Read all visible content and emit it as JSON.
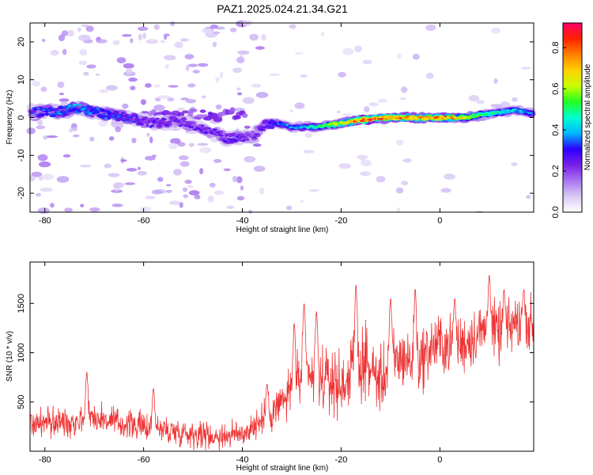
{
  "title": "PAZ1.2025.024.21.34.G21",
  "chart_data": [
    {
      "type": "heatmap",
      "xlabel": "Height of straight line (km)",
      "ylabel": "Frequency (Hz)",
      "xlim": [
        -83,
        19
      ],
      "ylim": [
        -25,
        25
      ],
      "x_ticks": [
        -80,
        -60,
        -40,
        -20,
        0
      ],
      "y_ticks": [
        -20,
        -10,
        0,
        10,
        20
      ],
      "colorbar": {
        "label": "Normalized spectral amplitude",
        "range": [
          0,
          0.92
        ],
        "ticks": [
          0.0,
          0.2,
          0.4,
          0.6,
          0.8
        ]
      },
      "ridge": {
        "x": [
          -83,
          -78,
          -73,
          -68,
          -63,
          -58,
          -53,
          -48,
          -43,
          -38,
          -35,
          -33,
          -30,
          -25,
          -20,
          -15,
          -10,
          -5,
          0,
          5,
          10,
          15,
          19
        ],
        "y": [
          1.5,
          1.5,
          2.5,
          1.0,
          0.0,
          -1.5,
          -1.0,
          -3.0,
          -5.5,
          -5.0,
          -1.5,
          -1.5,
          -2.5,
          -2.5,
          -1.5,
          -0.5,
          0.0,
          0.0,
          0.0,
          0.0,
          1.0,
          2.0,
          1.0
        ],
        "amplitude": [
          0.3,
          0.35,
          0.38,
          0.33,
          0.3,
          0.25,
          0.24,
          0.24,
          0.26,
          0.22,
          0.28,
          0.34,
          0.36,
          0.45,
          0.65,
          0.82,
          0.78,
          0.72,
          0.78,
          0.62,
          0.5,
          0.42,
          0.35
        ]
      },
      "secondary_band": {
        "x": [
          -60,
          -55,
          -50,
          -45,
          -40,
          -37
        ],
        "y": [
          1.5,
          0.5,
          1.0,
          0.5,
          1.0,
          -8.0
        ],
        "amplitude": [
          0.18,
          0.2,
          0.18,
          0.22,
          0.2,
          0.16
        ]
      }
    },
    {
      "type": "line",
      "xlabel": "Height of straight line (km)",
      "ylabel": "SNR (10 * v/v)",
      "xlim": [
        -83,
        19
      ],
      "ylim": [
        0,
        1920
      ],
      "x_ticks": [
        -80,
        -60,
        -40,
        -20,
        0
      ],
      "y_ticks": [
        500,
        1000,
        1500
      ],
      "color": "#ee3333",
      "envelope": {
        "x": [
          -83,
          -75,
          -70,
          -65,
          -60,
          -55,
          -50,
          -45,
          -40,
          -35,
          -32,
          -30,
          -27,
          -25,
          -22,
          -20,
          -18,
          -15,
          -12,
          -10,
          -7,
          -5,
          -2,
          0,
          3,
          5,
          8,
          10,
          13,
          15,
          19
        ],
        "y": [
          280,
          300,
          350,
          280,
          250,
          210,
          180,
          150,
          180,
          350,
          500,
          600,
          780,
          700,
          720,
          650,
          800,
          900,
          700,
          900,
          950,
          850,
          1050,
          1100,
          1050,
          1100,
          1200,
          1250,
          1150,
          1300,
          1280
        ]
      },
      "noise_std": {
        "x": [
          -83,
          -40,
          -35,
          -30,
          -20,
          19
        ],
        "y": [
          110,
          95,
          130,
          190,
          230,
          200
        ]
      },
      "peaks": [
        {
          "x": -71.5,
          "y": 800
        },
        {
          "x": -58,
          "y": 640
        },
        {
          "x": -35,
          "y": 680
        },
        {
          "x": -29.5,
          "y": 1300
        },
        {
          "x": -27.5,
          "y": 1500
        },
        {
          "x": -25,
          "y": 1420
        },
        {
          "x": -17,
          "y": 1690
        },
        {
          "x": -10,
          "y": 1550
        },
        {
          "x": -5,
          "y": 1650
        },
        {
          "x": 3,
          "y": 1550
        },
        {
          "x": 10,
          "y": 1790
        },
        {
          "x": 13,
          "y": 1640
        },
        {
          "x": 17,
          "y": 1640
        }
      ]
    }
  ],
  "colors": {
    "snr_line": "#ee3333",
    "colormap": [
      "#ffffff",
      "#d9c9f5",
      "#a874f0",
      "#7a1fe8",
      "#2b00ff",
      "#00b7ff",
      "#00ffd0",
      "#22ff22",
      "#c8ff00",
      "#ffd000",
      "#ff8000",
      "#ff2200",
      "#ff0066"
    ]
  }
}
